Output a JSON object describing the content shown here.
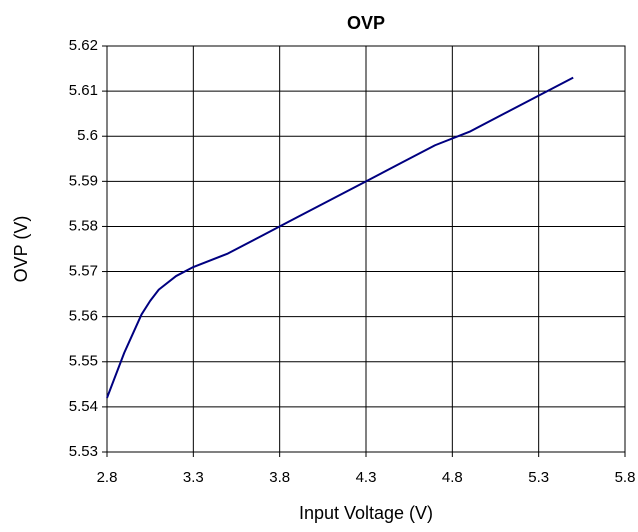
{
  "chart_data": {
    "type": "line",
    "title": "OVP",
    "x_label": "Input Voltage (V)",
    "y_label": "OVP (V)",
    "x": [
      2.8,
      2.9,
      3.0,
      3.05,
      3.1,
      3.2,
      3.3,
      3.5,
      3.7,
      3.9,
      4.1,
      4.3,
      4.5,
      4.7,
      4.9,
      5.1,
      5.3,
      5.5
    ],
    "series": [
      {
        "name": "OVP",
        "color": "#000080",
        "values": [
          5.542,
          5.552,
          5.5605,
          5.5635,
          5.566,
          5.569,
          5.571,
          5.574,
          5.578,
          5.582,
          5.586,
          5.59,
          5.594,
          5.598,
          5.601,
          5.605,
          5.609,
          5.613
        ]
      }
    ],
    "xlim": [
      2.8,
      5.8
    ],
    "xticks": [
      2.8,
      3.3,
      3.8,
      4.3,
      4.8,
      5.3,
      5.8
    ],
    "ylim": [
      5.53,
      5.62
    ],
    "yticks": [
      5.53,
      5.54,
      5.55,
      5.56,
      5.57,
      5.58,
      5.59,
      5.6,
      5.61,
      5.62
    ],
    "grid": true
  }
}
